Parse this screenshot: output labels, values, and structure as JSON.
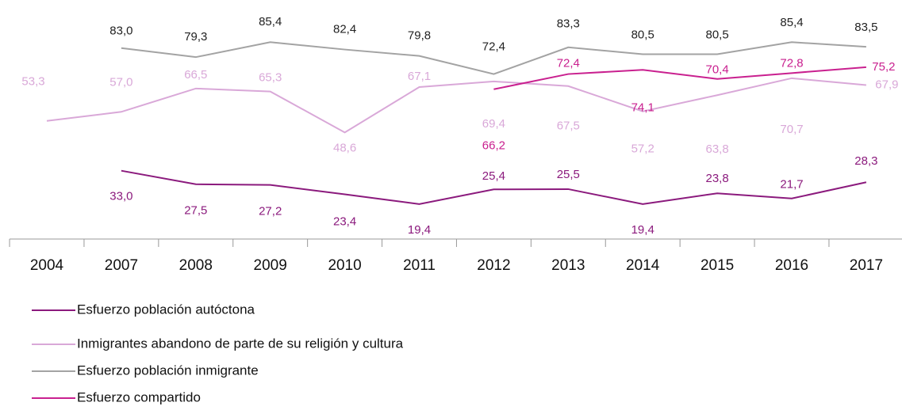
{
  "chart_data": {
    "type": "line",
    "categories": [
      "2004",
      "2007",
      "2008",
      "2009",
      "2010",
      "2011",
      "2012",
      "2013",
      "2014",
      "2015",
      "2016",
      "2017"
    ],
    "ylim": [
      0,
      100
    ],
    "series": [
      {
        "name": "Esfuerzo población autóctona",
        "color": "#8b1a7d",
        "values": [
          null,
          33.0,
          27.5,
          27.2,
          23.4,
          19.4,
          25.4,
          25.5,
          19.4,
          23.8,
          21.7,
          28.3
        ],
        "value_labels": [
          null,
          "33,0",
          "27,5",
          "27,2",
          "23,4",
          "19,4",
          "25,4",
          "25,5",
          "19,4",
          "23,8",
          "21,7",
          "28,3"
        ]
      },
      {
        "name": "Inmigrantes abandono de parte de su religión y cultura",
        "color": "#d9a8d8",
        "values": [
          53.3,
          57.0,
          66.5,
          65.3,
          48.6,
          67.1,
          69.4,
          67.5,
          57.2,
          63.8,
          70.7,
          67.9
        ],
        "value_labels": [
          "53,3",
          "57,0",
          "66,5",
          "65,3",
          "48,6",
          "67,1",
          "69,4",
          "67,5",
          "57,2",
          "63,8",
          "70,7",
          "67,9"
        ]
      },
      {
        "name": "Esfuerzo población inmigrante",
        "color": "#a3a3a3",
        "values": [
          null,
          83.0,
          79.3,
          85.4,
          82.4,
          79.8,
          72.4,
          83.3,
          80.5,
          80.5,
          85.4,
          83.5
        ],
        "value_labels": [
          null,
          "83,0",
          "79,3",
          "85,4",
          "82,4",
          "79,8",
          "72,4",
          "83,3",
          "80,5",
          "80,5",
          "85,4",
          "83,5"
        ]
      },
      {
        "name": "Esfuerzo compartido",
        "color": "#c9208f",
        "values": [
          null,
          null,
          null,
          null,
          null,
          null,
          66.2,
          72.4,
          74.1,
          70.4,
          72.8,
          75.2
        ],
        "value_labels": [
          null,
          null,
          null,
          null,
          null,
          null,
          "66,2",
          "72,4",
          "74,1",
          "70,4",
          "72,8",
          "75,2"
        ]
      }
    ]
  }
}
